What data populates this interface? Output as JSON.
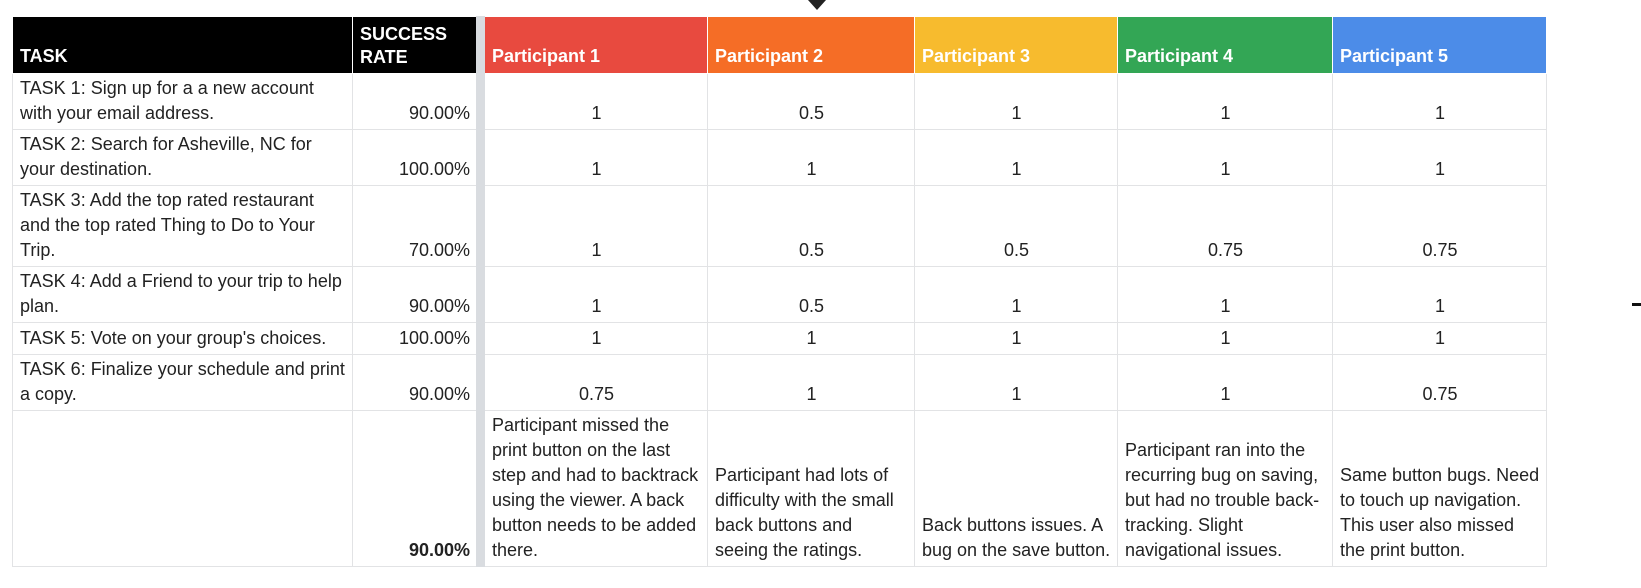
{
  "columns": {
    "task": "TASK",
    "success_rate": "SUCCESS RATE",
    "participants": [
      "Participant 1",
      "Participant 2",
      "Participant 3",
      "Participant 4",
      "Participant 5"
    ]
  },
  "colors": {
    "header_black": "#000000",
    "participant_1": "#e84a3f",
    "participant_2": "#f56d26",
    "participant_3": "#f7bb2e",
    "participant_4": "#33a655",
    "participant_5": "#4c8ce8"
  },
  "rows": [
    {
      "task": "TASK 1: Sign up for a a new account with your email address.",
      "rate": "90.00%",
      "scores": [
        "1",
        "0.5",
        "1",
        "1",
        "1"
      ]
    },
    {
      "task": "TASK 2:  Search for Asheville, NC for your destination.",
      "rate": "100.00%",
      "scores": [
        "1",
        "1",
        "1",
        "1",
        "1"
      ]
    },
    {
      "task": "TASK 3: Add the top rated restaurant and the top rated Thing to Do to Your Trip.",
      "rate": "70.00%",
      "scores": [
        "1",
        "0.5",
        "0.5",
        "0.75",
        "0.75"
      ]
    },
    {
      "task": "TASK 4: Add a Friend to your trip to help plan.",
      "rate": "90.00%",
      "scores": [
        "1",
        "0.5",
        "1",
        "1",
        "1"
      ]
    },
    {
      "task": "TASK 5: Vote on your group's choices.",
      "rate": "100.00%",
      "scores": [
        "1",
        "1",
        "1",
        "1",
        "1"
      ]
    },
    {
      "task": "TASK 6: Finalize your schedule and print a copy.",
      "rate": "90.00%",
      "scores": [
        "0.75",
        "1",
        "1",
        "1",
        "0.75"
      ]
    }
  ],
  "summary": {
    "overall_rate": "90.00%",
    "notes": [
      "Participant missed the print button on the last step and had to backtrack using the viewer. A back button needs to be added there.",
      "Participant had lots of difficulty with the small back buttons and seeing the ratings.",
      "Back buttons issues. A bug on the save button.",
      "Participant ran into the recurring bug on saving, but had no trouble back-tracking. Slight navigational issues.",
      "Same button bugs. Need to touch up navigation. This user also missed the print button."
    ]
  }
}
